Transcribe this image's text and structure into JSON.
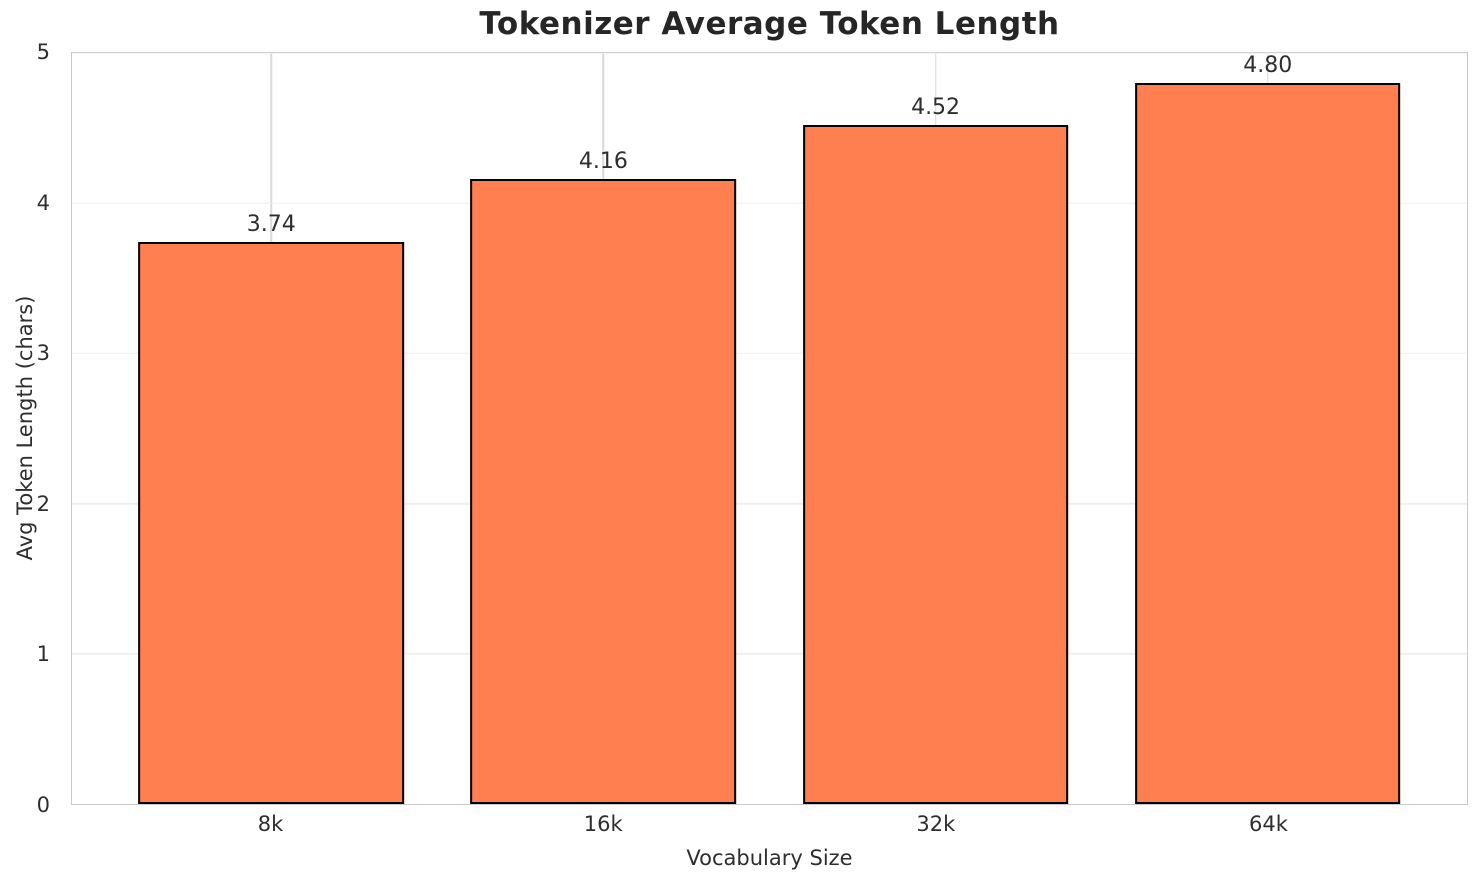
{
  "chart_data": {
    "type": "bar",
    "title": "Tokenizer Average Token Length",
    "xlabel": "Vocabulary Size",
    "ylabel": "Avg Token Length (chars)",
    "categories": [
      "8k",
      "16k",
      "32k",
      "64k"
    ],
    "values": [
      3.74,
      4.16,
      4.52,
      4.8
    ],
    "value_labels": [
      "3.74",
      "4.16",
      "4.52",
      "4.80"
    ],
    "ylim": [
      0,
      5
    ],
    "yticks": [
      "0",
      "1",
      "2",
      "3",
      "4",
      "5"
    ],
    "grid": true,
    "legend": "none",
    "bar_color": "#FF7F50",
    "bar_edge_color": "#000000",
    "grid_color_horizontal": "#EFEFEF",
    "grid_color_vertical": "#D9D9D9",
    "spine_color": "#C9C9C9",
    "text_color": "#2E2E2E",
    "title_color": "#262626",
    "background_color": "#FFFFFF"
  }
}
